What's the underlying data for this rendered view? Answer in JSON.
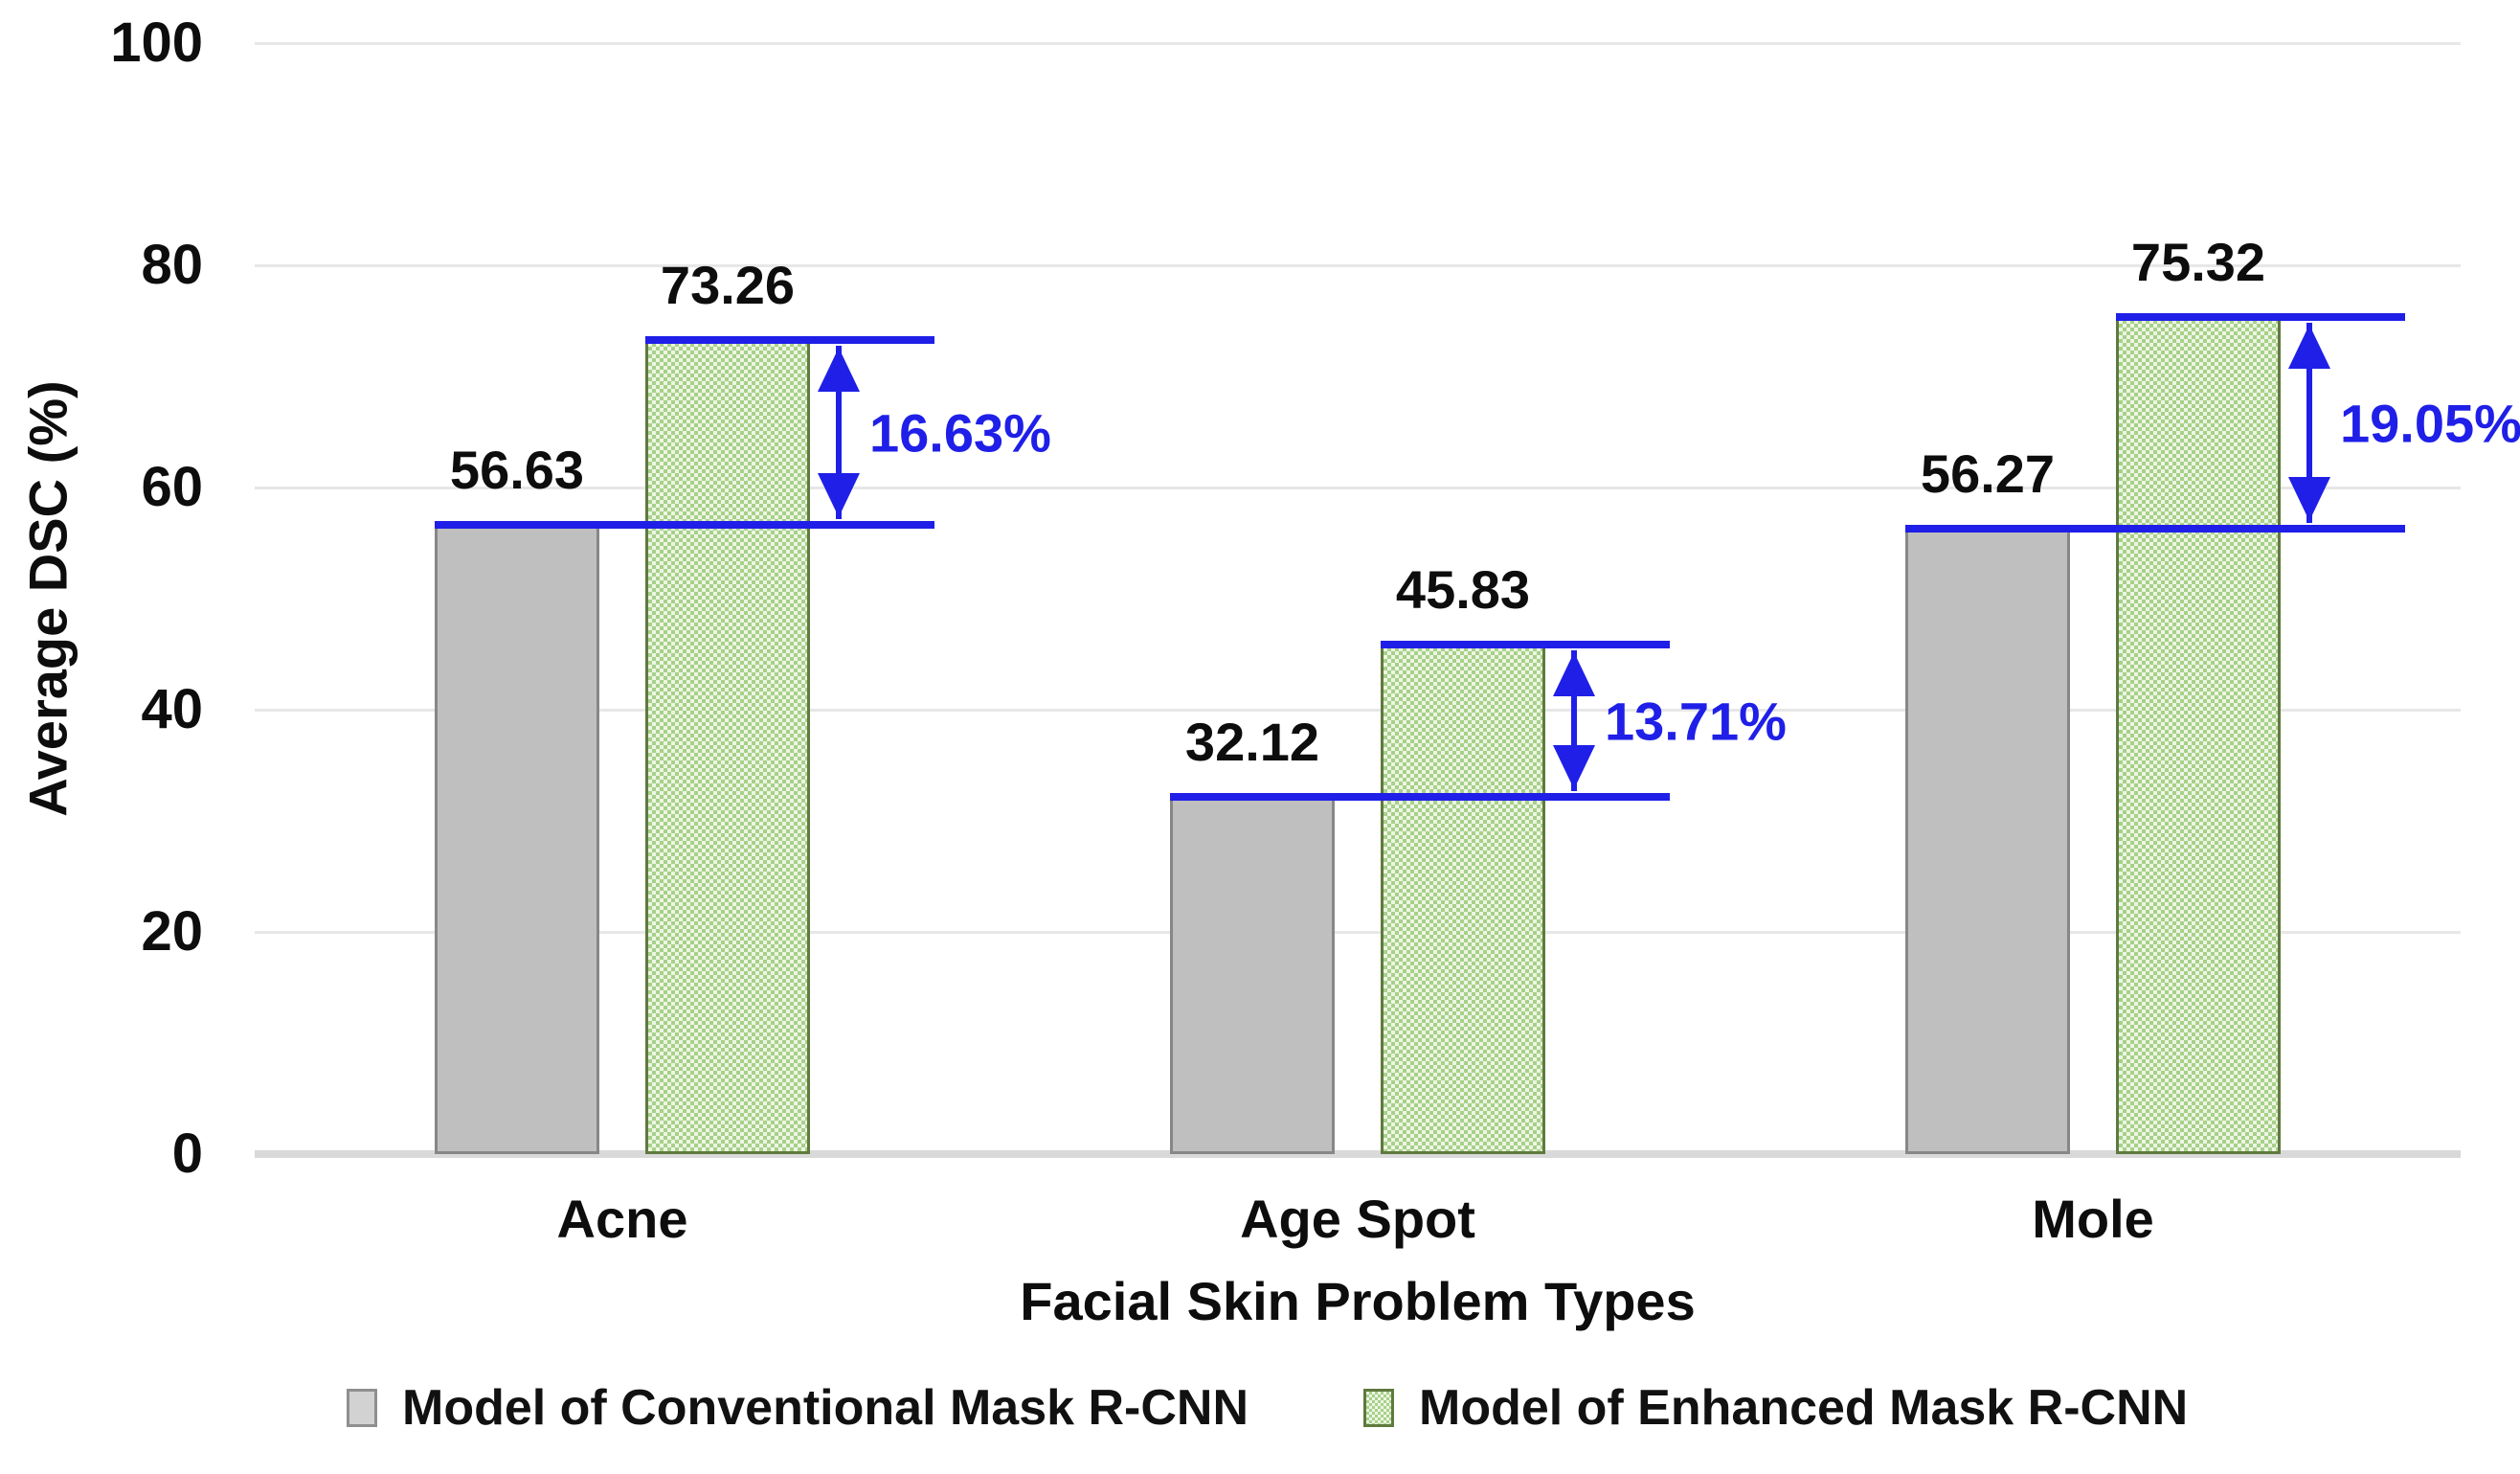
{
  "chart_data": {
    "type": "bar",
    "title": "",
    "xlabel": "Facial Skin Problem Types",
    "ylabel": "Average DSC (%)",
    "ylim": [
      0,
      100
    ],
    "yticks": [
      0,
      20,
      40,
      60,
      80,
      100
    ],
    "grid": true,
    "legend_position": "bottom",
    "categories": [
      "Acne",
      "Age Spot",
      "Mole"
    ],
    "series": [
      {
        "name": "Model of Conventional Mask R-CNN",
        "values": [
          56.63,
          32.12,
          56.27
        ],
        "value_labels": [
          "56.63",
          "32.12",
          "56.27"
        ],
        "fill": "#bfbfbf",
        "border": "#878787",
        "pattern": "solid"
      },
      {
        "name": "Model of Enhanced Mask R-CNN",
        "values": [
          73.26,
          45.83,
          75.32
        ],
        "value_labels": [
          "73.26",
          "45.83",
          "75.32"
        ],
        "fill": "#eef5e4",
        "pattern_color": "#a6d189",
        "border": "#5f7a3e",
        "pattern": "diagonal-checker"
      }
    ],
    "annotations": {
      "color": "#1f1fe8",
      "diffs": [
        {
          "category": "Acne",
          "label": "16.63%",
          "value": 16.63
        },
        {
          "category": "Age Spot",
          "label": "13.71%",
          "value": 13.71
        },
        {
          "category": "Mole",
          "label": "19.05%",
          "value": 19.05
        }
      ]
    }
  }
}
